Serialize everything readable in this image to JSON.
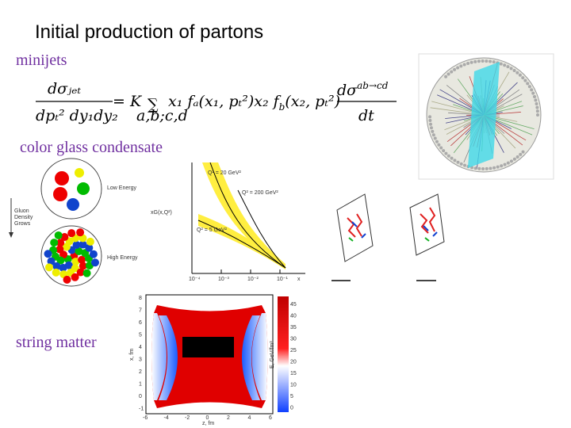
{
  "title": "Initial production of partons",
  "sections": [
    "minijets",
    "color glass condensate",
    "string matter"
  ],
  "formula": {
    "lhs_num": "dσⱼₑₜ",
    "lhs_den": "dpₜ² dy₁dy₂",
    "eq": "= K",
    "sum": "∑",
    "sum_sub": "a,b;c,d",
    "body": [
      "x₁ fₐ(x₁, pₜ²)x₂ f",
      "b",
      "(x₂, pₜ²)"
    ],
    "rhs_num": "dσ",
    "rhs_sup": "ab→cd",
    "rhs_den": "dt"
  },
  "cgc": {
    "low": "Low Energy",
    "high": "High Energy",
    "arrow": [
      "Gluon",
      "Density",
      "Grows"
    ]
  },
  "gluon_plot": {
    "ylabel": "xG(x,Q²)",
    "curves": [
      "Q² = 20 GeV²",
      "Q² = 200 GeV²",
      "Q² = 5 GeV²"
    ],
    "xticks": [
      "10⁻⁴",
      "10⁻³",
      "10⁻²",
      "10⁻¹"
    ],
    "xlabel": "x"
  },
  "heatmap": {
    "xlabel": "z, fm",
    "ylabel": "x, fm",
    "zlabel": "E, GeV/fm³",
    "xticks": [
      "-6",
      "-4",
      "-2",
      "0",
      "2",
      "4",
      "6"
    ],
    "yticks": [
      "8",
      "7",
      "6",
      "5",
      "4",
      "3",
      "2",
      "1",
      "0",
      "-1"
    ],
    "zticks": [
      "45",
      "40",
      "35",
      "30",
      "25",
      "20",
      "15",
      "10",
      "5",
      "0"
    ]
  }
}
